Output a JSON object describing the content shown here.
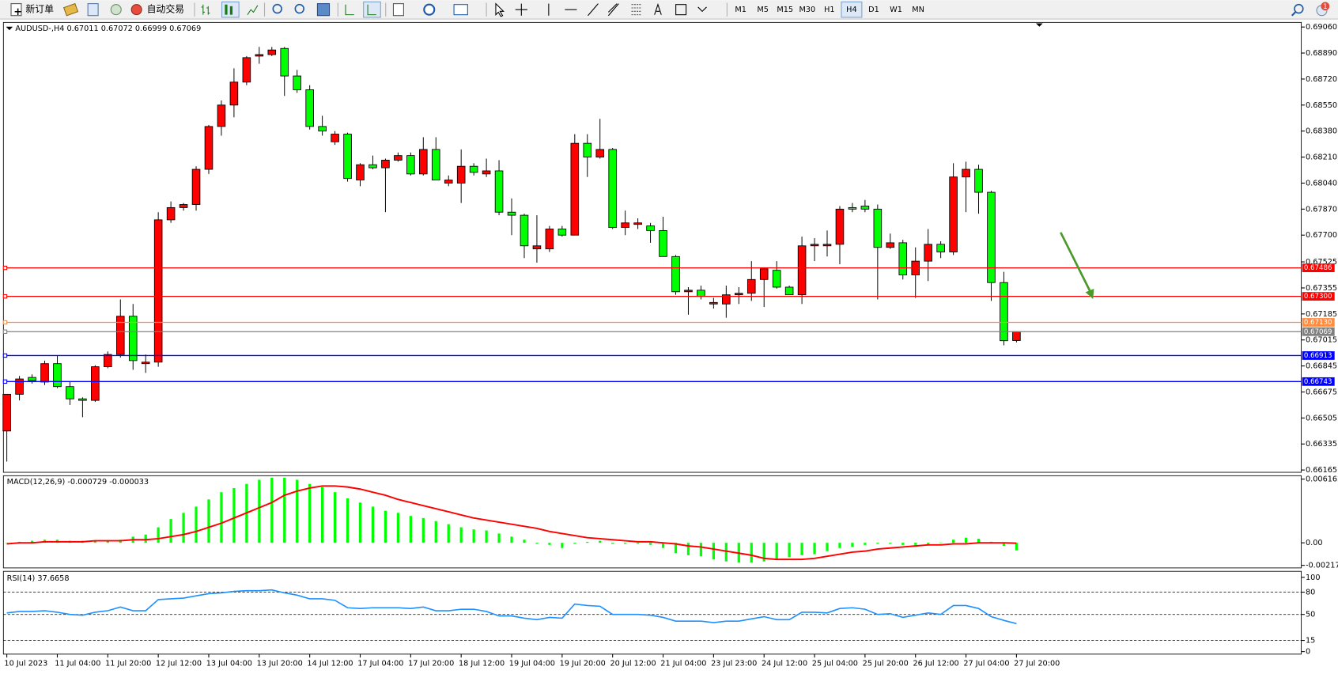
{
  "toolbar": {
    "new_order": "新订单",
    "auto_trading": "自动交易",
    "timeframes": [
      "M1",
      "M5",
      "M15",
      "M30",
      "H1",
      "H4",
      "D1",
      "W1",
      "MN"
    ],
    "active_timeframe_index": 5,
    "notification_count": 1
  },
  "chart_data": [
    {
      "type": "candlestick",
      "title": "AUDUSD-,H4  0.67011 0.67072 0.66999 0.67069",
      "categories": [
        "10 Jul 2023",
        null,
        null,
        null,
        "11 Jul 04:00",
        null,
        null,
        null,
        "11 Jul 20:00",
        null,
        null,
        null,
        "12 Jul 12:00",
        null,
        null,
        null,
        "13 Jul 04:00",
        null,
        null,
        null,
        "13 Jul 20:00",
        null,
        null,
        null,
        "14 Jul 12:00",
        null,
        null,
        null,
        "17 Jul 04:00",
        null,
        null,
        null,
        "17 Jul 20:00",
        null,
        null,
        null,
        "18 Jul 12:00",
        null,
        null,
        null,
        "19 Jul 04:00",
        null,
        null,
        null,
        "19 Jul 20:00",
        null,
        null,
        null,
        "20 Jul 12:00",
        null,
        null,
        null,
        "21 Jul 04:00",
        null,
        null,
        null,
        "23 Jul 23:00",
        null,
        null,
        null,
        "24 Jul 12:00",
        null,
        null,
        null,
        "25 Jul 04:00",
        null,
        null,
        null,
        "25 Jul 20:00",
        null,
        null,
        null,
        "26 Jul 12:00",
        null,
        null,
        null,
        "27 Jul 04:00",
        null,
        null,
        null,
        "27 Jul 20:00"
      ],
      "open": [
        0.6642,
        0.6666,
        0.6677,
        0.6674,
        0.6686,
        0.6671,
        0.6663,
        0.6662,
        0.6684,
        0.6692,
        0.6717,
        0.6686,
        0.6687,
        0.678,
        0.6788,
        0.679,
        0.6813,
        0.6841,
        0.6855,
        0.687,
        0.6887,
        0.6888,
        0.6892,
        0.6874,
        0.6865,
        0.6841,
        0.6831,
        0.6836,
        0.6806,
        0.6816,
        0.6814,
        0.6819,
        0.6822,
        0.681,
        0.6826,
        0.6804,
        0.6804,
        0.6815,
        0.681,
        0.6812,
        0.6785,
        0.6783,
        0.6761,
        0.6761,
        0.6774,
        0.677,
        0.683,
        0.6821,
        0.6826,
        0.6775,
        0.6777,
        0.6776,
        0.6773,
        0.6756,
        0.6733,
        0.6734,
        0.6725,
        0.6725,
        0.6731,
        0.6732,
        0.6741,
        0.6747,
        0.6736,
        0.6731,
        0.6763,
        0.6763,
        0.6764,
        0.6788,
        0.6789,
        0.6787,
        0.6762,
        0.6765,
        0.6744,
        0.6753,
        0.6764,
        0.6759,
        0.6808,
        0.6813,
        0.6798,
        0.6739,
        0.67011
      ],
      "high": [
        0.6666,
        0.6678,
        0.6679,
        0.6688,
        0.6691,
        0.6674,
        0.6664,
        0.6685,
        0.6694,
        0.6728,
        0.6725,
        0.6692,
        0.6785,
        0.6792,
        0.6791,
        0.6815,
        0.6842,
        0.6858,
        0.6879,
        0.6887,
        0.6893,
        0.6893,
        0.6893,
        0.6878,
        0.6868,
        0.6848,
        0.6838,
        0.6837,
        0.6817,
        0.6822,
        0.682,
        0.6824,
        0.6824,
        0.6834,
        0.6834,
        0.6809,
        0.6826,
        0.6817,
        0.682,
        0.6819,
        0.6794,
        0.6784,
        0.6783,
        0.6776,
        0.6776,
        0.6836,
        0.6836,
        0.6846,
        0.6827,
        0.6786,
        0.6781,
        0.6778,
        0.6782,
        0.6757,
        0.6736,
        0.6737,
        0.6729,
        0.6737,
        0.6736,
        0.6753,
        0.6749,
        0.6753,
        0.6737,
        0.6769,
        0.6768,
        0.6773,
        0.6789,
        0.6791,
        0.6793,
        0.679,
        0.6771,
        0.6767,
        0.6762,
        0.6774,
        0.6766,
        0.6817,
        0.6818,
        0.6816,
        0.6799,
        0.6746,
        0.67072
      ],
      "low": [
        0.6622,
        0.6662,
        0.6673,
        0.6672,
        0.667,
        0.6659,
        0.6651,
        0.6661,
        0.6683,
        0.669,
        0.6682,
        0.668,
        0.6684,
        0.6778,
        0.6786,
        0.6786,
        0.681,
        0.6835,
        0.6847,
        0.6868,
        0.6882,
        0.6887,
        0.6861,
        0.6863,
        0.6839,
        0.6835,
        0.6829,
        0.6805,
        0.6802,
        0.6813,
        0.6785,
        0.6818,
        0.6809,
        0.6809,
        0.6806,
        0.6802,
        0.6791,
        0.6809,
        0.6808,
        0.6783,
        0.677,
        0.6755,
        0.6752,
        0.6759,
        0.6769,
        0.677,
        0.6808,
        0.682,
        0.6774,
        0.677,
        0.6774,
        0.6765,
        0.6756,
        0.6731,
        0.6718,
        0.6728,
        0.6722,
        0.6716,
        0.6725,
        0.6727,
        0.6723,
        0.6735,
        0.6731,
        0.6725,
        0.6753,
        0.6756,
        0.6751,
        0.6785,
        0.6785,
        0.6728,
        0.6761,
        0.6741,
        0.6729,
        0.674,
        0.6755,
        0.6757,
        0.6785,
        0.6784,
        0.6727,
        0.6698,
        0.66999
      ],
      "close": [
        0.6666,
        0.6676,
        0.6675,
        0.6686,
        0.6671,
        0.6663,
        0.6662,
        0.6684,
        0.6692,
        0.6717,
        0.6688,
        0.6687,
        0.678,
        0.6788,
        0.679,
        0.6813,
        0.6841,
        0.6855,
        0.687,
        0.6886,
        0.6888,
        0.6891,
        0.6874,
        0.6865,
        0.6841,
        0.6838,
        0.6836,
        0.6807,
        0.6816,
        0.6814,
        0.6819,
        0.6822,
        0.681,
        0.6826,
        0.6806,
        0.6806,
        0.6815,
        0.6811,
        0.6812,
        0.6785,
        0.6783,
        0.6763,
        0.6763,
        0.6774,
        0.677,
        0.683,
        0.6821,
        0.6826,
        0.6775,
        0.6778,
        0.6778,
        0.6773,
        0.6756,
        0.6733,
        0.6734,
        0.673,
        0.6726,
        0.6731,
        0.6732,
        0.6741,
        0.6748,
        0.6736,
        0.6731,
        0.6763,
        0.6764,
        0.6764,
        0.6787,
        0.6787,
        0.6787,
        0.6762,
        0.6765,
        0.6744,
        0.6753,
        0.6764,
        0.6759,
        0.6808,
        0.6813,
        0.6798,
        0.6739,
        0.6701,
        0.67069
      ],
      "up_color": "#ff0000",
      "down_color": "#00ff00",
      "ylim": [
        0.6615,
        0.6909
      ],
      "yticks": [
        {
          "value": 0.6906,
          "label": "0.69060"
        },
        {
          "value": 0.6889,
          "label": "0.68890"
        },
        {
          "value": 0.6872,
          "label": "0.68720"
        },
        {
          "value": 0.6855,
          "label": "0.68550"
        },
        {
          "value": 0.6838,
          "label": "0.68380"
        },
        {
          "value": 0.6821,
          "label": "0.68210"
        },
        {
          "value": 0.6804,
          "label": "0.68040"
        },
        {
          "value": 0.6787,
          "label": "0.67870"
        },
        {
          "value": 0.677,
          "label": "0.67700"
        },
        0.67525,
        0.67355,
        0.67185,
        0.67015,
        0.66845,
        0.66675,
        0.66505,
        0.66335,
        0.66165
      ],
      "hlines": [
        {
          "value": 0.67486,
          "color": "#ff0000"
        },
        {
          "value": 0.673,
          "label": "0.67300",
          "color": "#ff0000"
        },
        {
          "value": 0.6713,
          "label": "0.67130",
          "color": "#ff8c40"
        },
        {
          "value": 0.67069,
          "color": "#808080"
        },
        {
          "value": 0.66913,
          "color": "#0000ff"
        },
        {
          "value": 0.66743,
          "color": "#0000ff"
        }
      ]
    },
    {
      "type": "macd",
      "title": "MACD(12,26,9) -0.000729 -0.000033",
      "values": [
        0,
        0.0001,
        0.0002,
        0.0003,
        0.0003,
        0.0002,
        0.0002,
        0.0002,
        0.0002,
        0.0003,
        0.0006,
        0.0008,
        0.0015,
        0.0023,
        0.0029,
        0.0035,
        0.0042,
        0.0049,
        0.0053,
        0.0057,
        0.0061,
        0.0063,
        0.0063,
        0.0061,
        0.0057,
        0.0054,
        0.0049,
        0.0043,
        0.0039,
        0.0035,
        0.0031,
        0.0029,
        0.0026,
        0.0024,
        0.0021,
        0.0018,
        0.0015,
        0.0013,
        0.0012,
        0.0009,
        0.0006,
        0.0003,
        -0.0001,
        -0.0002,
        -0.0005,
        -0.0001,
        0.0001,
        0.0002,
        -0.0001,
        -0.0001,
        -0.0001,
        -0.0002,
        -0.0005,
        -0.001,
        -0.0012,
        -0.0013,
        -0.0016,
        -0.0018,
        -0.0019,
        -0.0019,
        -0.0018,
        -0.0016,
        -0.0014,
        -0.0012,
        -0.0011,
        -0.0008,
        -0.0005,
        -0.0004,
        -0.0002,
        -0.0001,
        -0.0001,
        -0.0002,
        -0.0002,
        -0.0002,
        0,
        0.0003,
        0.0005,
        0.0004,
        0.0001,
        -0.0003,
        -0.000729
      ],
      "color": "#00ff00",
      "signal": [
        -0.0001,
        0,
        0,
        0.0001,
        0.0001,
        0.0001,
        0.0001,
        0.0002,
        0.0002,
        0.0002,
        0.0003,
        0.0003,
        0.0004,
        0.0006,
        0.0008,
        0.0011,
        0.0015,
        0.0019,
        0.0024,
        0.0029,
        0.0034,
        0.0039,
        0.0046,
        0.005,
        0.0053,
        0.0055,
        0.0055,
        0.0054,
        0.0052,
        0.0049,
        0.0046,
        0.0042,
        0.0039,
        0.0036,
        0.0033,
        0.003,
        0.0027,
        0.0024,
        0.0022,
        0.002,
        0.0018,
        0.0016,
        0.0014,
        0.0011,
        0.0009,
        0.0007,
        0.0005,
        0.0004,
        0.0003,
        0.0002,
        0.0001,
        0.0001,
        0,
        -0.0001,
        -0.0003,
        -0.0004,
        -0.0006,
        -0.0008,
        -0.001,
        -0.0012,
        -0.0015,
        -0.0016,
        -0.0016,
        -0.0016,
        -0.0015,
        -0.0013,
        -0.0011,
        -0.0009,
        -0.0008,
        -0.0006,
        -0.0005,
        -0.0004,
        -0.0003,
        -0.0002,
        -0.0002,
        -0.0001,
        -0.0001,
        0,
        0,
        0,
        -3.3e-05
      ],
      "signal_color": "#ff0000",
      "ylim": [
        -0.002178,
        0.006162
      ],
      "yticks": [
        0.006162,
        {
          "value": 0,
          "label": "0.00"
        },
        -0.002178
      ]
    },
    {
      "type": "line",
      "title": "RSI(14) 37.6658",
      "values": [
        52,
        54,
        54,
        55,
        53,
        50,
        49,
        53,
        55,
        60,
        55,
        55,
        70,
        71,
        72,
        75,
        78,
        79,
        81,
        82,
        82,
        83,
        79,
        76,
        71,
        71,
        69,
        59,
        58,
        59,
        59,
        59,
        58,
        60,
        55,
        55,
        57,
        57,
        54,
        48,
        48,
        45,
        43,
        46,
        45,
        64,
        62,
        61,
        50,
        50,
        50,
        49,
        46,
        41,
        41,
        41,
        39,
        41,
        41,
        44,
        47,
        43,
        43,
        53,
        53,
        52,
        58,
        59,
        57,
        50,
        51,
        46,
        49,
        52,
        50,
        62,
        62,
        58,
        47,
        42,
        37.6658
      ],
      "color": "#1e90ff",
      "ylim": [
        0,
        100
      ],
      "yticks": [
        100,
        80,
        50,
        15,
        0
      ],
      "levels": [
        80,
        50,
        15
      ]
    }
  ]
}
